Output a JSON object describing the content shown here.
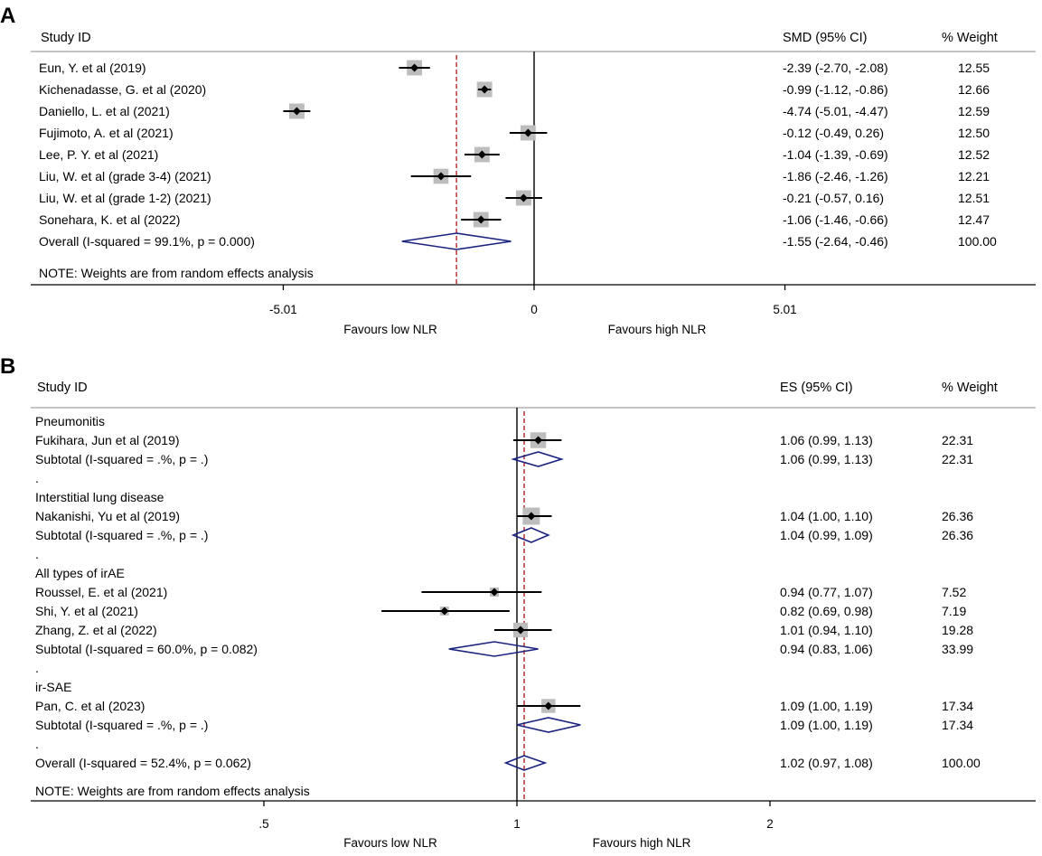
{
  "chart_data": [
    {
      "type": "forest",
      "panel_label": "A",
      "headers": {
        "study": "Study ID",
        "effect": "SMD (95% CI)",
        "weight": "% Weight"
      },
      "reference_value": 0,
      "overall_line_value": -1.55,
      "rows": [
        {
          "kind": "study",
          "label": "Eun, Y. et al (2019)",
          "est": -2.39,
          "lo": -2.7,
          "hi": -2.08,
          "ci_text": "-2.39 (-2.70, -2.08)",
          "weight_text": "12.55"
        },
        {
          "kind": "study",
          "label": "Kichenadasse, G. et al (2020)",
          "est": -0.99,
          "lo": -1.12,
          "hi": -0.86,
          "ci_text": "-0.99 (-1.12, -0.86)",
          "weight_text": "12.66"
        },
        {
          "kind": "study",
          "label": "Daniello, L. et al (2021)",
          "est": -4.74,
          "lo": -5.01,
          "hi": -4.47,
          "ci_text": "-4.74 (-5.01, -4.47)",
          "weight_text": "12.59"
        },
        {
          "kind": "study",
          "label": "Fujimoto, A. et al (2021)",
          "est": -0.12,
          "lo": -0.49,
          "hi": 0.26,
          "ci_text": "-0.12 (-0.49, 0.26)",
          "weight_text": "12.50"
        },
        {
          "kind": "study",
          "label": "Lee, P. Y. et al (2021)",
          "est": -1.04,
          "lo": -1.39,
          "hi": -0.69,
          "ci_text": "-1.04 (-1.39, -0.69)",
          "weight_text": "12.52"
        },
        {
          "kind": "study",
          "label": "Liu, W. et al (grade 3-4) (2021)",
          "est": -1.86,
          "lo": -2.46,
          "hi": -1.26,
          "ci_text": "-1.86 (-2.46, -1.26)",
          "weight_text": "12.21"
        },
        {
          "kind": "study",
          "label": "Liu, W. et al (grade 1-2) (2021)",
          "est": -0.21,
          "lo": -0.57,
          "hi": 0.16,
          "ci_text": "-0.21 (-0.57, 0.16)",
          "weight_text": "12.51"
        },
        {
          "kind": "study",
          "label": "Sonehara, K.  et al (2022)",
          "est": -1.06,
          "lo": -1.46,
          "hi": -0.66,
          "ci_text": "-1.06 (-1.46, -0.66)",
          "weight_text": "12.47"
        },
        {
          "kind": "overall",
          "label": "Overall  (I-squared = 99.1%, p = 0.000)",
          "est": -1.55,
          "lo": -2.64,
          "hi": -0.46,
          "ci_text": "-1.55 (-2.64, -0.46)",
          "weight_text": "100.00"
        }
      ],
      "note": "NOTE: Weights are from random effects analysis",
      "x_ticks": [
        {
          "value": -5.01,
          "label": "-5.01"
        },
        {
          "value": 0,
          "label": "0"
        },
        {
          "value": 5.01,
          "label": "5.01"
        }
      ],
      "favours_left": "Favours low NLR",
      "favours_right": "Favours high NLR"
    },
    {
      "type": "forest",
      "panel_label": "B",
      "headers": {
        "study": "Study ID",
        "effect": "ES (95% CI)",
        "weight": "% Weight"
      },
      "reference_value": 1,
      "overall_line_value": 1.02,
      "rows": [
        {
          "kind": "group",
          "label": "Pneumonitis"
        },
        {
          "kind": "study",
          "label": "Fukihara, Jun et al (2019)",
          "est": 1.06,
          "lo": 0.99,
          "hi": 1.13,
          "ci_text": "1.06 (0.99, 1.13)",
          "weight_text": "22.31"
        },
        {
          "kind": "subtotal",
          "label": "Subtotal  (I-squared = .%, p = .)",
          "est": 1.06,
          "lo": 0.99,
          "hi": 1.13,
          "ci_text": "1.06 (0.99, 1.13)",
          "weight_text": "22.31"
        },
        {
          "kind": "spacer",
          "label": "."
        },
        {
          "kind": "group",
          "label": "Interstitial lung disease"
        },
        {
          "kind": "study",
          "label": "Nakanishi, Yu et al (2019)",
          "est": 1.04,
          "lo": 1.0,
          "hi": 1.1,
          "ci_text": "1.04 (1.00, 1.10)",
          "weight_text": "26.36"
        },
        {
          "kind": "subtotal",
          "label": "Subtotal  (I-squared = .%, p = .)",
          "est": 1.04,
          "lo": 0.99,
          "hi": 1.09,
          "ci_text": "1.04 (0.99, 1.09)",
          "weight_text": "26.36"
        },
        {
          "kind": "spacer",
          "label": "."
        },
        {
          "kind": "group",
          "label": "All types of irAE"
        },
        {
          "kind": "study",
          "label": "Roussel, E. et al (2021)",
          "est": 0.94,
          "lo": 0.77,
          "hi": 1.07,
          "ci_text": "0.94 (0.77, 1.07)",
          "weight_text": "7.52"
        },
        {
          "kind": "study",
          "label": "Shi, Y. et al (2021)",
          "est": 0.82,
          "lo": 0.69,
          "hi": 0.98,
          "ci_text": "0.82 (0.69, 0.98)",
          "weight_text": "7.19"
        },
        {
          "kind": "study",
          "label": "Zhang, Z.  et al (2022)",
          "est": 1.01,
          "lo": 0.94,
          "hi": 1.1,
          "ci_text": "1.01 (0.94, 1.10)",
          "weight_text": "19.28"
        },
        {
          "kind": "subtotal",
          "label": "Subtotal  (I-squared = 60.0%, p = 0.082)",
          "est": 0.94,
          "lo": 0.83,
          "hi": 1.06,
          "ci_text": "0.94 (0.83, 1.06)",
          "weight_text": "33.99"
        },
        {
          "kind": "spacer",
          "label": "."
        },
        {
          "kind": "group",
          "label": "ir-SAE"
        },
        {
          "kind": "study",
          "label": "Pan, C.  et al (2023)",
          "est": 1.09,
          "lo": 1.0,
          "hi": 1.19,
          "ci_text": "1.09 (1.00, 1.19)",
          "weight_text": "17.34"
        },
        {
          "kind": "subtotal",
          "label": "Subtotal  (I-squared = .%, p = .)",
          "est": 1.09,
          "lo": 1.0,
          "hi": 1.19,
          "ci_text": "1.09 (1.00, 1.19)",
          "weight_text": "17.34"
        },
        {
          "kind": "spacer",
          "label": "."
        },
        {
          "kind": "overall",
          "label": "Overall  (I-squared = 52.4%, p = 0.062)",
          "est": 1.02,
          "lo": 0.97,
          "hi": 1.08,
          "ci_text": "1.02 (0.97, 1.08)",
          "weight_text": "100.00"
        }
      ],
      "note": "NOTE: Weights are from random effects analysis",
      "x_ticks": [
        {
          "value": 0.5,
          "label": ".5"
        },
        {
          "value": 1,
          "label": "1"
        },
        {
          "value": 2,
          "label": "2"
        }
      ],
      "favours_left": "Favours low NLR",
      "favours_right": "Favours high NLR"
    }
  ],
  "colors": {
    "diamond": "#1a237e",
    "overall_line": "#b22222",
    "weight_box": "#bdbdbd",
    "axis": "#000000"
  }
}
